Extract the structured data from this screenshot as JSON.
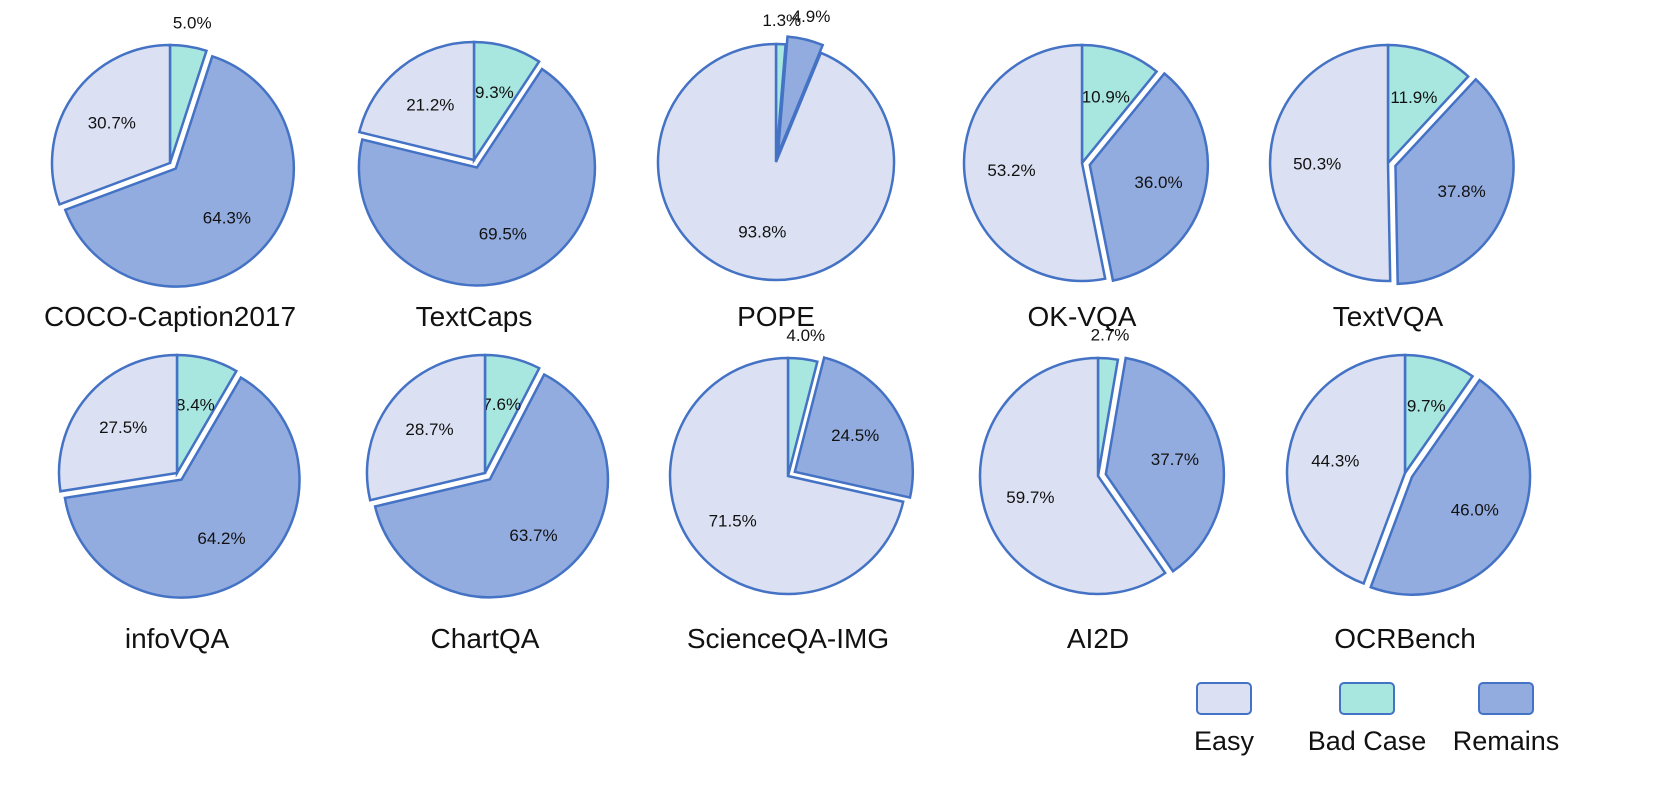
{
  "colors": {
    "easy": "#dbe1f2",
    "bad_case": "#a8e6e0",
    "remains": "#93acdf",
    "stroke": "#4472c4"
  },
  "chart_data": {
    "type": "pie",
    "slice_order": [
      "bad_case",
      "remains",
      "easy"
    ],
    "legend": {
      "placement": "bottom-right",
      "items": [
        {
          "key": "easy",
          "label": "Easy"
        },
        {
          "key": "bad_case",
          "label": "Bad Case"
        },
        {
          "key": "remains",
          "label": "Remains"
        }
      ]
    },
    "charts": [
      {
        "title": "COCO-Caption2017",
        "easy": 30.7,
        "bad_case": 5.0,
        "remains": 64.3,
        "exploded": "remains"
      },
      {
        "title": "TextCaps",
        "easy": 21.2,
        "bad_case": 9.3,
        "remains": 69.5,
        "exploded": "remains"
      },
      {
        "title": "POPE",
        "easy": 93.8,
        "bad_case": 1.3,
        "remains": 4.9,
        "exploded": "remains"
      },
      {
        "title": "OK-VQA",
        "easy": 53.2,
        "bad_case": 10.9,
        "remains": 36.0,
        "exploded": "remains"
      },
      {
        "title": "TextVQA",
        "easy": 50.3,
        "bad_case": 11.9,
        "remains": 37.8,
        "exploded": "remains"
      },
      {
        "title": "infoVQA",
        "easy": 27.5,
        "bad_case": 8.4,
        "remains": 64.2,
        "exploded": "remains"
      },
      {
        "title": "ChartQA",
        "easy": 28.7,
        "bad_case": 7.6,
        "remains": 63.7,
        "exploded": "remains"
      },
      {
        "title": "ScienceQA-IMG",
        "easy": 71.5,
        "bad_case": 4.0,
        "remains": 24.5,
        "exploded": "remains"
      },
      {
        "title": "AI2D",
        "easy": 59.7,
        "bad_case": 2.7,
        "remains": 37.7,
        "exploded": "remains"
      },
      {
        "title": "OCRBench",
        "easy": 44.3,
        "bad_case": 9.7,
        "remains": 46.0,
        "exploded": "remains"
      }
    ]
  }
}
